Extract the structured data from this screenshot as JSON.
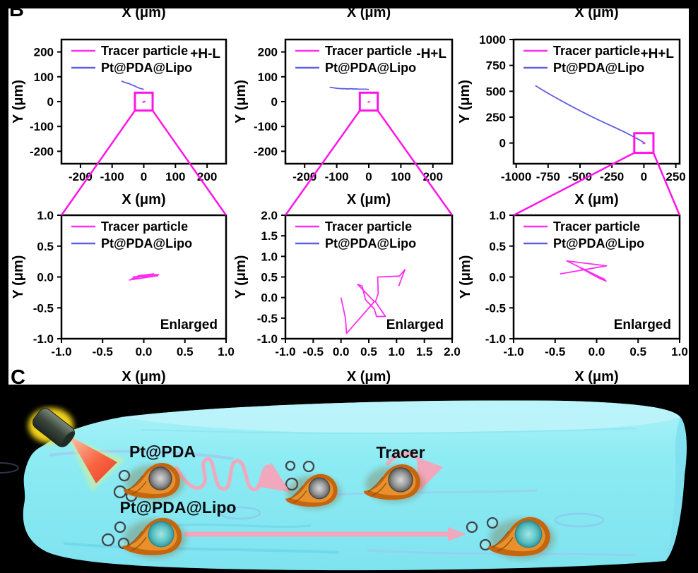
{
  "figure": {
    "panel_b_label": "B",
    "panel_c_label": "C"
  },
  "panelB": {
    "cropped_axis_titles": [
      "X (μm)",
      "X (μm)",
      "X (μm)"
    ],
    "colors": {
      "tracer": "#ff2df2",
      "lipo": "#5e5ee6",
      "inset": "#ff14e8"
    }
  },
  "chart_data": [
    {
      "type": "line",
      "title": "+H-L",
      "annotation": null,
      "xlabel": "X (μm)",
      "ylabel": "Y (μm)",
      "xlim": [
        -260,
        260
      ],
      "ylim": [
        -250,
        250
      ],
      "grid": false,
      "legend_position": "top-left",
      "xticks": {
        "values": [
          -200,
          -100,
          0,
          100,
          200
        ],
        "labels": [
          "-200",
          "-100",
          "0",
          "100",
          "200"
        ]
      },
      "yticks": {
        "values": [
          200,
          100,
          0,
          -100,
          -200
        ],
        "labels": [
          "200",
          "100",
          "0",
          "-100",
          "-200"
        ]
      },
      "series": [
        {
          "name": "Tracer particle",
          "color": "#ff2df2",
          "points": [
            [
              0,
              2
            ],
            [
              4,
              0
            ],
            [
              -3,
              -3
            ],
            [
              1,
              1
            ]
          ]
        },
        {
          "name": "Pt@PDA@Lipo",
          "color": "#5e5ee6",
          "points": [
            [
              -70,
              83
            ],
            [
              -64,
              79
            ],
            [
              -58,
              77
            ],
            [
              -52,
              74
            ],
            [
              -47,
              73
            ],
            [
              -41,
              69
            ],
            [
              -35,
              66
            ],
            [
              -29,
              63
            ],
            [
              -23,
              59
            ],
            [
              -17,
              56
            ],
            [
              -11,
              53
            ],
            [
              -5,
              51
            ],
            [
              0,
              49
            ]
          ]
        }
      ],
      "inset": {
        "x0": -28,
        "y0": -36,
        "x1": 28,
        "y1": 36,
        "links_to": 3
      }
    },
    {
      "type": "line",
      "title": "-H+L",
      "annotation": null,
      "xlabel": "X (μm)",
      "ylabel": "Y (μm)",
      "xlim": [
        -260,
        260
      ],
      "ylim": [
        -250,
        250
      ],
      "grid": false,
      "legend_position": "top-left",
      "xticks": {
        "values": [
          -200,
          -100,
          0,
          100,
          200
        ],
        "labels": [
          "-200",
          "-100",
          "0",
          "100",
          "200"
        ]
      },
      "yticks": {
        "values": [
          200,
          100,
          0,
          -100,
          -200
        ],
        "labels": [
          "200",
          "100",
          "0",
          "-100",
          "-200"
        ]
      },
      "series": [
        {
          "name": "Tracer particle",
          "color": "#ff2df2",
          "points": [
            [
              0,
              1
            ],
            [
              3,
              -1
            ],
            [
              -2,
              -2
            ],
            [
              1,
              0
            ]
          ]
        },
        {
          "name": "Pt@PDA@Lipo",
          "color": "#5e5ee6",
          "points": [
            [
              -122,
              58
            ],
            [
              -112,
              56
            ],
            [
              -102,
              54
            ],
            [
              -93,
              53
            ],
            [
              -84,
              52
            ],
            [
              -75,
              52
            ],
            [
              -66,
              51
            ],
            [
              -57,
              52
            ],
            [
              -48,
              51
            ],
            [
              -39,
              51
            ],
            [
              -30,
              50
            ],
            [
              -20,
              50
            ],
            [
              -10,
              50
            ],
            [
              0,
              49
            ]
          ]
        }
      ],
      "inset": {
        "x0": -28,
        "y0": -36,
        "x1": 28,
        "y1": 36,
        "links_to": 4
      }
    },
    {
      "type": "line",
      "title": "+H+L",
      "annotation": null,
      "xlabel": "X (μm)",
      "ylabel": "Y (μm)",
      "xlim": [
        -1020,
        280
      ],
      "ylim": [
        -200,
        1000
      ],
      "grid": false,
      "legend_position": "top-left",
      "xticks": {
        "values": [
          -1000,
          -750,
          -500,
          -250,
          0,
          250
        ],
        "labels": [
          "-1000",
          "-750",
          "-500",
          "-250",
          "0",
          "250"
        ]
      },
      "yticks": {
        "values": [
          1000,
          750,
          500,
          250,
          0
        ],
        "labels": [
          "1000",
          "750",
          "500",
          "250",
          "0"
        ]
      },
      "series": [
        {
          "name": "Tracer particle",
          "color": "#ff2df2",
          "points": [
            [
              0,
              5
            ],
            [
              8,
              -3
            ],
            [
              -6,
              -6
            ],
            [
              3,
              2
            ]
          ]
        },
        {
          "name": "Pt@PDA@Lipo",
          "color": "#5e5ee6",
          "points": [
            [
              -850,
              555
            ],
            [
              -780,
              502
            ],
            [
              -710,
              452
            ],
            [
              -640,
              404
            ],
            [
              -570,
              357
            ],
            [
              -500,
              312
            ],
            [
              -430,
              268
            ],
            [
              -360,
              226
            ],
            [
              -290,
              186
            ],
            [
              -220,
              146
            ],
            [
              -150,
              105
            ],
            [
              -80,
              60
            ],
            [
              -30,
              27
            ],
            [
              0,
              4
            ]
          ]
        }
      ],
      "inset": {
        "x0": -75,
        "y0": -95,
        "x1": 75,
        "y1": 95,
        "links_to": 5
      }
    },
    {
      "type": "line",
      "title": null,
      "annotation": "Enlarged",
      "xlabel": "X (μm)",
      "ylabel": "Y (μm)",
      "xlim": [
        -1,
        1
      ],
      "ylim": [
        -1,
        1
      ],
      "grid": false,
      "legend_position": "top-left",
      "xticks": {
        "values": [
          -1,
          -0.5,
          0,
          0.5,
          1
        ],
        "labels": [
          "-1.0",
          "-0.5",
          "0.0",
          "0.5",
          "1.0"
        ]
      },
      "yticks": {
        "values": [
          1,
          0.5,
          0,
          -0.5,
          -1
        ],
        "labels": [
          "1.0",
          "0.5",
          "0.0",
          "-0.5",
          "-1.0"
        ]
      },
      "series": [
        {
          "name": "Tracer particle",
          "color": "#ff2df2",
          "points": [
            [
              -0.18,
              -0.05
            ],
            [
              0.17,
              0.02
            ],
            [
              -0.13,
              0.0
            ],
            [
              0.18,
              0.04
            ],
            [
              -0.07,
              0.02
            ],
            [
              0.12,
              0.05
            ],
            [
              -0.15,
              -0.03
            ]
          ]
        },
        {
          "name": "Pt@PDA@Lipo",
          "color": "#5e5ee6",
          "points": []
        }
      ],
      "inset": null
    },
    {
      "type": "line",
      "title": null,
      "annotation": "Enlarged",
      "xlabel": "X (μm)",
      "ylabel": "Y (μm)",
      "xlim": [
        -1,
        2
      ],
      "ylim": [
        -1,
        2
      ],
      "grid": false,
      "legend_position": "top-left",
      "xticks": {
        "values": [
          -1,
          -0.5,
          0,
          0.5,
          1,
          1.5,
          2
        ],
        "labels": [
          "-1.0",
          "-0.5",
          "0.0",
          "0.5",
          "1.0",
          "1.5",
          "2.0"
        ]
      },
      "yticks": {
        "values": [
          2,
          1.5,
          1,
          0.5,
          0,
          -0.5,
          -1
        ],
        "labels": [
          "2.0",
          "1.5",
          "1.0",
          "0.5",
          "0.0",
          "-0.5",
          "-1.0"
        ]
      },
      "series": [
        {
          "name": "Tracer particle",
          "color": "#ff2df2",
          "points": [
            [
              0.0,
              0.0
            ],
            [
              0.08,
              -0.5
            ],
            [
              0.1,
              -0.87
            ],
            [
              0.6,
              -0.1
            ],
            [
              0.3,
              0.32
            ],
            [
              0.38,
              0.28
            ],
            [
              0.44,
              -0.05
            ],
            [
              0.6,
              -0.28
            ],
            [
              0.64,
              -0.46
            ],
            [
              0.8,
              -0.46
            ],
            [
              0.62,
              -0.1
            ],
            [
              0.67,
              0.1
            ],
            [
              0.66,
              0.5
            ],
            [
              1.05,
              0.52
            ],
            [
              1.15,
              0.68
            ],
            [
              1.04,
              0.28
            ]
          ]
        },
        {
          "name": "Pt@PDA@Lipo",
          "color": "#5e5ee6",
          "points": []
        }
      ],
      "inset": null
    },
    {
      "type": "line",
      "title": null,
      "annotation": "Enlarged",
      "xlabel": "X (μm)",
      "ylabel": "Y (μm)",
      "xlim": [
        -1,
        1
      ],
      "ylim": [
        -1,
        1
      ],
      "grid": false,
      "legend_position": "top-left",
      "xticks": {
        "values": [
          -1,
          -0.5,
          0,
          0.5,
          1
        ],
        "labels": [
          "-1.0",
          "-0.5",
          "0.0",
          "0.5",
          "1.0"
        ]
      },
      "yticks": {
        "values": [
          1,
          0.5,
          0,
          -0.5,
          -1
        ],
        "labels": [
          "1.0",
          "0.5",
          "0.0",
          "-0.5",
          "-1.0"
        ]
      },
      "series": [
        {
          "name": "Tracer particle",
          "color": "#ff2df2",
          "points": [
            [
              -0.44,
              0.05
            ],
            [
              0.12,
              0.18
            ],
            [
              -0.36,
              0.26
            ],
            [
              0.1,
              -0.04
            ],
            [
              -0.2,
              0.15
            ],
            [
              0.03,
              -0.02
            ],
            [
              0.12,
              -0.07
            ]
          ]
        },
        {
          "name": "Pt@PDA@Lipo",
          "color": "#5e5ee6",
          "points": []
        }
      ],
      "inset": null
    }
  ],
  "panelC": {
    "labels": {
      "pt_pda": "Pt@PDA",
      "pt_pda_lipo": "Pt@PDA@Lipo",
      "tracer": "Tracer"
    },
    "colors": {
      "channel": "#8cebf3",
      "arrow": "#f2a8bc",
      "flame": "#e8912c",
      "lipo_core": "#5fc6c8",
      "beam": "#ff5a38",
      "glow": "#ffdf1a"
    }
  }
}
